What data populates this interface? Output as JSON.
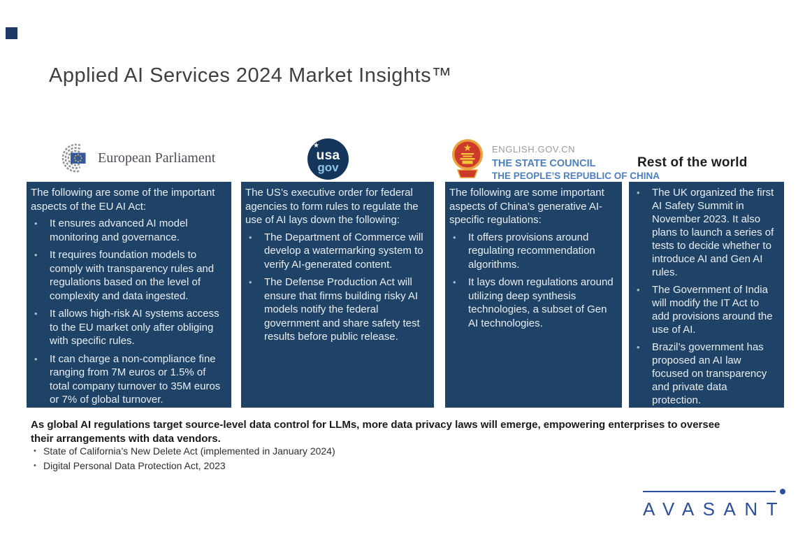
{
  "slide": {
    "title": "Applied AI Services 2024 Market Insights™"
  },
  "logos": {
    "eu": {
      "label": "European Parliament"
    },
    "us": {
      "top": "usa",
      "bottom": "gov"
    },
    "cn": {
      "line1": "ENGLISH.GOV.CN",
      "line2": "THE STATE COUNCIL",
      "line3": "THE PEOPLE’S REPUBLIC OF CHINA"
    },
    "row_heading": "Rest of the world"
  },
  "columns": [
    {
      "intro": "The following are some of the important aspects of the EU AI Act:",
      "bullets": [
        "It ensures advanced AI model monitoring and governance.",
        "It requires foundation models to comply with transparency rules and regulations based on the level of complexity and data ingested.",
        "It allows high-risk AI systems access to the EU market only after obliging with specific rules.",
        "It can charge a non-compliance fine ranging from 7M euros or 1.5% of total company turnover to 35M euros or 7% of global turnover."
      ]
    },
    {
      "intro": "The US’s executive order for federal agencies to form rules to regulate the use of AI lays down the following:",
      "bullets": [
        "The Department of Commerce will develop a watermarking system to verify AI-generated content.",
        "The Defense Production Act will ensure that firms building risky AI models notify the federal government and share safety test results before public release."
      ]
    },
    {
      "intro": "The following are some important aspects of China’s generative AI-specific regulations:",
      "bullets": [
        "It offers provisions around regulating recommendation algorithms.",
        "It lays down regulations around utilizing deep synthesis technologies, a subset of Gen AI technologies."
      ]
    },
    {
      "intro": "",
      "bullets": [
        "The UK organized the first AI Safety Summit in November 2023. It also plans to launch a series of tests to decide whether to introduce AI and Gen AI rules.",
        "The Government of India will modify the IT Act to add provisions around the use of AI.",
        "Brazil’s government has proposed an AI law focused on transparency and private data protection."
      ]
    }
  ],
  "footer": {
    "note": "As global AI regulations target source-level data control for LLMs, more data privacy laws will emerge, empowering enterprises to oversee their arrangements with data vendors.",
    "bullets": [
      "State of California’s New Delete Act (implemented in January 2024)",
      "Digital Personal Data Protection Act, 2023"
    ]
  },
  "brand": {
    "logo_text": "AVASANT"
  },
  "colors": {
    "navy_box": "#1E4366",
    "title_gray": "#3F3F3F",
    "box_text": "#E9EEF5",
    "bullet_dot": "#A9BACC",
    "brand_blue": "#2B4EA2",
    "ep_text": "#4C4C55",
    "cn_blue": "#4E7FBE",
    "cn_gray": "#9B9B9B",
    "usagov_navy": "#14365C",
    "usagov_lightblue": "#8FC3E3",
    "accent_square": "#1F3864"
  }
}
